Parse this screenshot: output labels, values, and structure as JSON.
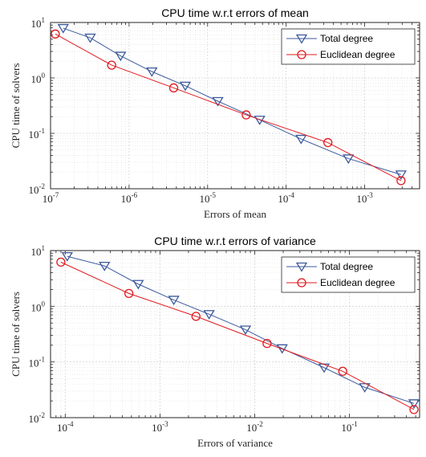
{
  "chart_data": [
    {
      "type": "line",
      "title": "CPU time w.r.t errors of mean",
      "xlabel": "Errors of mean",
      "ylabel": "CPU time of solvers",
      "xscale": "log",
      "yscale": "log",
      "xlim": [
        1e-07,
        0.005
      ],
      "ylim": [
        0.01,
        10
      ],
      "grid": true,
      "legend_position": "top-right",
      "x_ticks": [
        {
          "value": 1e-07,
          "base": "10",
          "exp": "-7"
        },
        {
          "value": 1e-06,
          "base": "10",
          "exp": "-6"
        },
        {
          "value": 1e-05,
          "base": "10",
          "exp": "-5"
        },
        {
          "value": 0.0001,
          "base": "10",
          "exp": "-4"
        },
        {
          "value": 0.001,
          "base": "10",
          "exp": "-3"
        }
      ],
      "y_ticks": [
        {
          "value": 0.01,
          "base": "10",
          "exp": "-2"
        },
        {
          "value": 0.1,
          "base": "10",
          "exp": "-1"
        },
        {
          "value": 1,
          "base": "10",
          "exp": "0"
        },
        {
          "value": 10,
          "base": "10",
          "exp": "1"
        }
      ],
      "series": [
        {
          "name": "Total degree",
          "color": "#3c5a9c",
          "marker": "triangle-down",
          "points": [
            [
              1.45e-07,
              7.9
            ],
            [
              3.2e-07,
              5.3
            ],
            [
              7.8e-07,
              2.5
            ],
            [
              1.95e-06,
              1.3
            ],
            [
              5.2e-06,
              0.72
            ],
            [
              1.35e-05,
              0.38
            ],
            [
              4.6e-05,
              0.175
            ],
            [
              0.000155,
              0.079
            ],
            [
              0.00062,
              0.035
            ],
            [
              0.0029,
              0.018
            ]
          ]
        },
        {
          "name": "Euclidean degree",
          "color": "#e0191e",
          "marker": "circle",
          "points": [
            [
              1.15e-07,
              6.2
            ],
            [
              6e-07,
              1.7
            ],
            [
              3.7e-06,
              0.66
            ],
            [
              3.1e-05,
              0.215
            ],
            [
              0.00034,
              0.068
            ],
            [
              0.0029,
              0.014
            ]
          ]
        }
      ]
    },
    {
      "type": "line",
      "title": "CPU time w.r.t errors of variance",
      "xlabel": "Errors of variance",
      "ylabel": "CPU time of solvers",
      "xscale": "log",
      "yscale": "log",
      "xlim": [
        7e-05,
        0.55
      ],
      "ylim": [
        0.01,
        10
      ],
      "grid": true,
      "legend_position": "top-right",
      "x_ticks": [
        {
          "value": 0.0001,
          "base": "10",
          "exp": "-4"
        },
        {
          "value": 0.001,
          "base": "10",
          "exp": "-3"
        },
        {
          "value": 0.01,
          "base": "10",
          "exp": "-2"
        },
        {
          "value": 0.1,
          "base": "10",
          "exp": "-1"
        }
      ],
      "y_ticks": [
        {
          "value": 0.01,
          "base": "10",
          "exp": "-2"
        },
        {
          "value": 0.1,
          "base": "10",
          "exp": "-1"
        },
        {
          "value": 1,
          "base": "10",
          "exp": "0"
        },
        {
          "value": 10,
          "base": "10",
          "exp": "1"
        }
      ],
      "series": [
        {
          "name": "Total degree",
          "color": "#3c5a9c",
          "marker": "triangle-down",
          "points": [
            [
              0.000105,
              7.9
            ],
            [
              0.00026,
              5.3
            ],
            [
              0.00059,
              2.5
            ],
            [
              0.0014,
              1.3
            ],
            [
              0.0033,
              0.72
            ],
            [
              0.008,
              0.38
            ],
            [
              0.0195,
              0.175
            ],
            [
              0.054,
              0.079
            ],
            [
              0.145,
              0.035
            ],
            [
              0.48,
              0.018
            ]
          ]
        },
        {
          "name": "Euclidean degree",
          "color": "#e0191e",
          "marker": "circle",
          "points": [
            [
              9e-05,
              6.2
            ],
            [
              0.00047,
              1.7
            ],
            [
              0.0024,
              0.66
            ],
            [
              0.0135,
              0.215
            ],
            [
              0.085,
              0.068
            ],
            [
              0.48,
              0.014
            ]
          ]
        }
      ]
    }
  ]
}
